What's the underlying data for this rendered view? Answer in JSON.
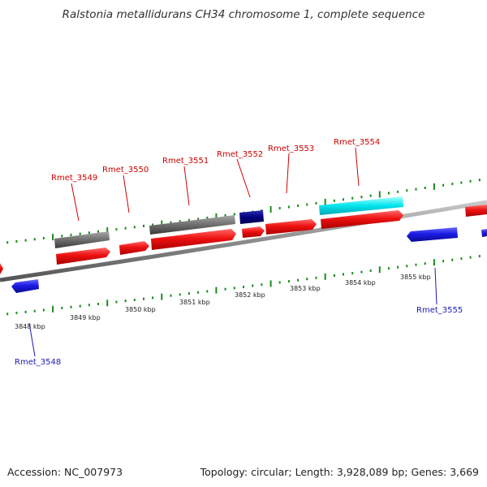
{
  "title": "Ralstonia metallidurans CH34 chromosome 1, complete sequence",
  "footer": {
    "accession": "Accession: NC_007973",
    "stats": "Topology: circular; Length: 3,928,089 bp; Genes: 3,669"
  },
  "colors": {
    "backbone": "#8c8c8c",
    "tick": "#1a8a1a",
    "forward_label": "#cc0000",
    "reverse_label": "#1a1ab4",
    "cds_forward": "#e81010",
    "cds_reverse": "#1c1ce6",
    "gray_feature": "#6e6e6e",
    "navy_feature": "#000080",
    "cyan_feature": "#00e5ee"
  },
  "scale": {
    "labels": [
      "3848 kbp",
      "3849 kbp",
      "3850 kbp",
      "3851 kbp",
      "3852 kbp",
      "3853 kbp",
      "3854 kbp",
      "3855 kbp"
    ]
  },
  "genes": [
    {
      "name": "Rmet_3548",
      "strand": "reverse"
    },
    {
      "name": "Rmet_3549",
      "strand": "forward"
    },
    {
      "name": "Rmet_3550",
      "strand": "forward"
    },
    {
      "name": "Rmet_3551",
      "strand": "forward"
    },
    {
      "name": "Rmet_3552",
      "strand": "forward"
    },
    {
      "name": "Rmet_3553",
      "strand": "forward"
    },
    {
      "name": "Rmet_3554",
      "strand": "forward"
    },
    {
      "name": "Rmet_3555",
      "strand": "reverse"
    }
  ]
}
